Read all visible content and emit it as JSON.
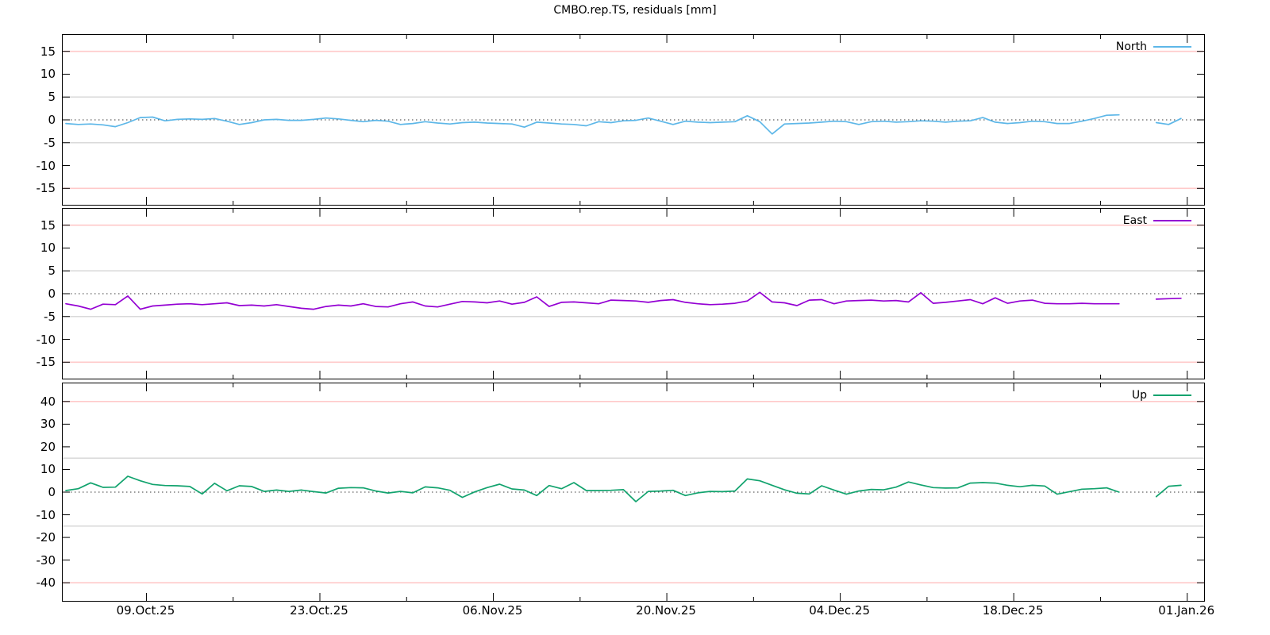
{
  "title": "CMBO.rep.TS, residuals [mm]",
  "colors": {
    "north": "#5db7e8",
    "east": "#9400d3",
    "up": "#12a36e",
    "threshold_red": "#ffc9c9",
    "threshold_gray": "#d4d4d4",
    "zero_line": "#3a3a3a",
    "border": "#000000"
  },
  "x_axis": {
    "tick_labels": [
      "09.Oct.25",
      "23.Oct.25",
      "06.Nov.25",
      "20.Nov.25",
      "04.Dec.25",
      "18.Dec.25",
      "01.Jan.26"
    ],
    "days_between_major_ticks": 14,
    "first_major_tick_day": 6.5,
    "minor_tick_interval_days": 7,
    "total_days_shown": 92
  },
  "chart_data": [
    {
      "type": "line",
      "panel": "north",
      "legend_label": "North",
      "legend_position": "top-right",
      "ylabel_unit": "mm",
      "ylim": [
        -18.6,
        18.6
      ],
      "yticks": [
        15,
        10,
        5,
        0,
        -5,
        -10,
        -15
      ],
      "grid": {
        "red_lines": [
          15,
          -15
        ],
        "gray_lines": [
          5,
          -5
        ],
        "zero_line": "dotted"
      },
      "series": [
        {
          "name": "North",
          "values": [
            -0.8,
            -1.0,
            -0.9,
            -1.1,
            -1.5,
            -0.6,
            0.5,
            0.6,
            -0.2,
            0.1,
            0.2,
            0.1,
            0.3,
            -0.3,
            -1.0,
            -0.6,
            0.0,
            0.1,
            -0.1,
            -0.1,
            0.1,
            0.4,
            0.2,
            -0.1,
            -0.4,
            -0.1,
            -0.3,
            -1.0,
            -0.8,
            -0.4,
            -0.7,
            -0.9,
            -0.6,
            -0.5,
            -0.7,
            -0.8,
            -0.9,
            -1.6,
            -0.5,
            -0.7,
            -0.9,
            -1.0,
            -1.3,
            -0.4,
            -0.6,
            -0.2,
            -0.1,
            0.4,
            -0.3,
            -1.0,
            -0.3,
            -0.5,
            -0.6,
            -0.5,
            -0.4,
            0.9,
            -0.4,
            -3.1,
            -0.9,
            -0.8,
            -0.7,
            -0.5,
            -0.3,
            -0.4,
            -1.0,
            -0.4,
            -0.3,
            -0.5,
            -0.4,
            -0.2,
            -0.3,
            -0.5,
            -0.3,
            -0.2,
            0.5,
            -0.5,
            -0.8,
            -0.6,
            -0.3,
            -0.4,
            -0.8,
            -0.8,
            -0.3,
            0.3,
            1.0,
            1.1,
            null,
            null,
            -0.6,
            -1.0,
            0.3
          ]
        }
      ]
    },
    {
      "type": "line",
      "panel": "east",
      "legend_label": "East",
      "legend_position": "top-right",
      "ylabel_unit": "mm",
      "ylim": [
        -18.6,
        18.6
      ],
      "yticks": [
        15,
        10,
        5,
        0,
        -5,
        -10,
        -15
      ],
      "grid": {
        "red_lines": [
          15,
          -15
        ],
        "gray_lines": [
          5,
          -5
        ],
        "zero_line": "dotted"
      },
      "series": [
        {
          "name": "East",
          "values": [
            -2.2,
            -2.7,
            -3.4,
            -2.3,
            -2.4,
            -0.5,
            -3.4,
            -2.7,
            -2.5,
            -2.3,
            -2.2,
            -2.4,
            -2.2,
            -2.0,
            -2.6,
            -2.5,
            -2.7,
            -2.4,
            -2.8,
            -3.2,
            -3.4,
            -2.8,
            -2.5,
            -2.7,
            -2.2,
            -2.8,
            -2.9,
            -2.2,
            -1.8,
            -2.7,
            -2.9,
            -2.3,
            -1.7,
            -1.8,
            -2.0,
            -1.6,
            -2.3,
            -1.9,
            -0.7,
            -2.8,
            -1.9,
            -1.8,
            -2.0,
            -2.2,
            -1.4,
            -1.5,
            -1.6,
            -1.9,
            -1.5,
            -1.3,
            -1.9,
            -2.2,
            -2.4,
            -2.3,
            -2.1,
            -1.6,
            0.3,
            -1.8,
            -2.0,
            -2.6,
            -1.4,
            -1.3,
            -2.2,
            -1.6,
            -1.5,
            -1.4,
            -1.6,
            -1.5,
            -1.8,
            0.2,
            -2.1,
            -1.9,
            -1.6,
            -1.3,
            -2.2,
            -0.9,
            -2.1,
            -1.6,
            -1.4,
            -2.1,
            -2.2,
            -2.2,
            -2.1,
            -2.2,
            -2.2,
            -2.2,
            null,
            null,
            -1.2,
            -1.1,
            -1.0
          ]
        }
      ]
    },
    {
      "type": "line",
      "panel": "up",
      "legend_label": "Up",
      "legend_position": "top-right",
      "ylabel_unit": "mm",
      "ylim": [
        -48,
        48
      ],
      "yticks": [
        40,
        30,
        20,
        10,
        0,
        -10,
        -20,
        -30,
        -40
      ],
      "grid": {
        "red_lines": [
          40,
          -40
        ],
        "gray_lines": [
          15,
          -15
        ],
        "zero_line": "dotted"
      },
      "series": [
        {
          "name": "Up",
          "values": [
            0.7,
            1.5,
            4.1,
            2.1,
            2.2,
            7.0,
            5.0,
            3.4,
            2.9,
            2.8,
            2.5,
            -0.8,
            3.9,
            0.6,
            2.8,
            2.5,
            0.3,
            0.9,
            0.3,
            0.9,
            0.2,
            -0.4,
            1.7,
            2.0,
            1.9,
            0.5,
            -0.4,
            0.3,
            -0.3,
            2.3,
            1.9,
            0.8,
            -2.3,
            0.1,
            2.0,
            3.5,
            1.4,
            0.9,
            -1.5,
            2.9,
            1.5,
            4.2,
            0.7,
            0.7,
            0.8,
            1.1,
            -4.2,
            0.3,
            0.5,
            0.8,
            -1.5,
            -0.3,
            0.3,
            0.2,
            0.5,
            5.8,
            5.0,
            3.0,
            1.0,
            -0.5,
            -0.8,
            2.8,
            0.9,
            -0.9,
            0.5,
            1.2,
            1.0,
            2.2,
            4.5,
            3.2,
            2.0,
            1.8,
            1.9,
            4.0,
            4.2,
            4.0,
            3.0,
            2.4,
            3.0,
            2.7,
            -0.9,
            0.2,
            1.3,
            1.5,
            1.9,
            0.0,
            null,
            null,
            -2.0,
            2.6,
            3.0
          ]
        }
      ]
    }
  ]
}
